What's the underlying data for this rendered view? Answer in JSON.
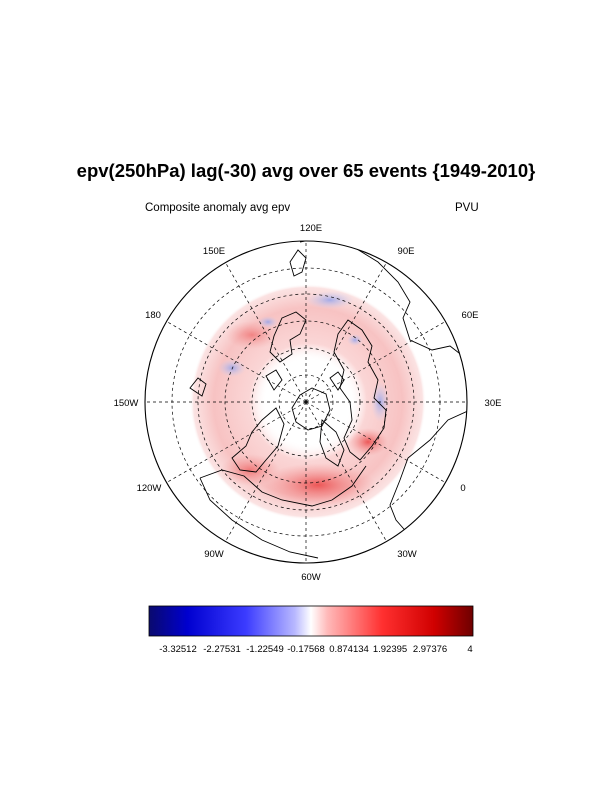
{
  "title": "epv(250hPa) lag(-30) avg over 65 events {1949-2010}",
  "subtitle_left": "Composite anomaly avg epv",
  "subtitle_right": "PVU",
  "longitude_labels": {
    "lon_120e": "120E",
    "lon_90e": "90E",
    "lon_60e": "60E",
    "lon_30e": "30E",
    "lon_0": "0",
    "lon_30w": "30W",
    "lon_60w": "60W",
    "lon_90w": "90W",
    "lon_120w": "120W",
    "lon_150w": "150W",
    "lon_180": "180",
    "lon_150e": "150E"
  },
  "colorbar": {
    "labels": [
      "-3.32512",
      "-2.27531",
      "-1.22549",
      "-0.17568",
      "0.874134",
      "1.92395",
      "2.97376",
      "4"
    ],
    "min_color": "#0a0a6e",
    "mid_color": "#ffffff",
    "max_color": "#6e0000"
  },
  "colors": {
    "positive_anomaly": "#e83c3c",
    "negative_anomaly": "#5a6ee0",
    "grid": "#000000"
  }
}
